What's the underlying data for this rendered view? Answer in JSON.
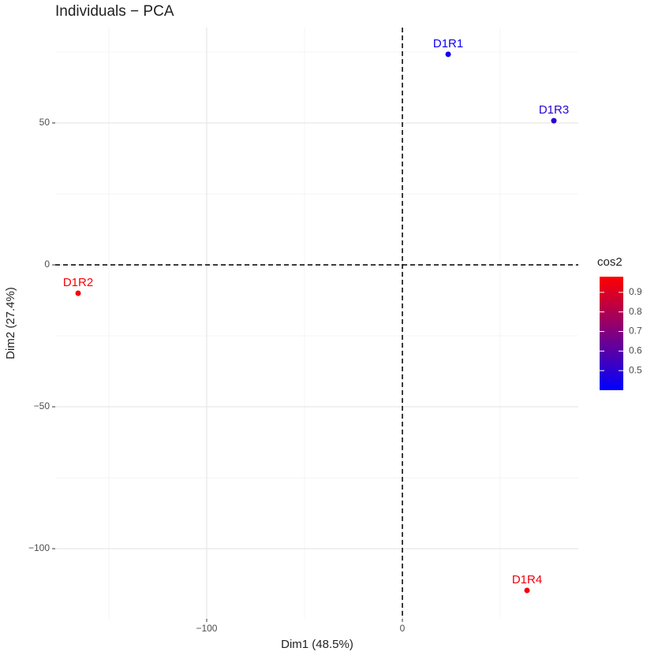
{
  "chart_data": {
    "type": "scatter",
    "title": "Individuals − PCA",
    "x_label": "Dim1 (48.5%)",
    "y_label": "Dim2 (27.4%)",
    "series": [
      {
        "names": [
          "D1R1",
          "D1R3",
          "D1R2",
          "D1R4"
        ],
        "x": [
          23.4,
          77.4,
          -165.7,
          63.7
        ],
        "values": [
          74.2,
          50.8,
          -10,
          -114.7
        ],
        "cos2": [
          0.43,
          0.5,
          0.97,
          0.95
        ]
      }
    ],
    "xlim": [
      -177.4,
      89.9
    ],
    "ylim": [
      -124.7,
      83.6
    ],
    "xticks": [
      {
        "value": -100,
        "label": "−100"
      },
      0
    ],
    "yticks": [
      {
        "value": -100,
        "label": "−100"
      },
      {
        "value": -50,
        "label": "−50"
      },
      0,
      50
    ],
    "xminorticks": [
      -150,
      -50,
      50
    ],
    "yminorticks": [
      -75,
      -25,
      25,
      75
    ],
    "hlines": [
      0
    ],
    "vlines": [
      0
    ],
    "grid": true,
    "legend": {
      "title": "cos2",
      "colorlim": [
        0.4,
        0.98
      ],
      "low": "#0000ff",
      "high": "#ff0000",
      "ticks": [
        0.5,
        0.6,
        0.7,
        0.8,
        0.9
      ]
    }
  }
}
